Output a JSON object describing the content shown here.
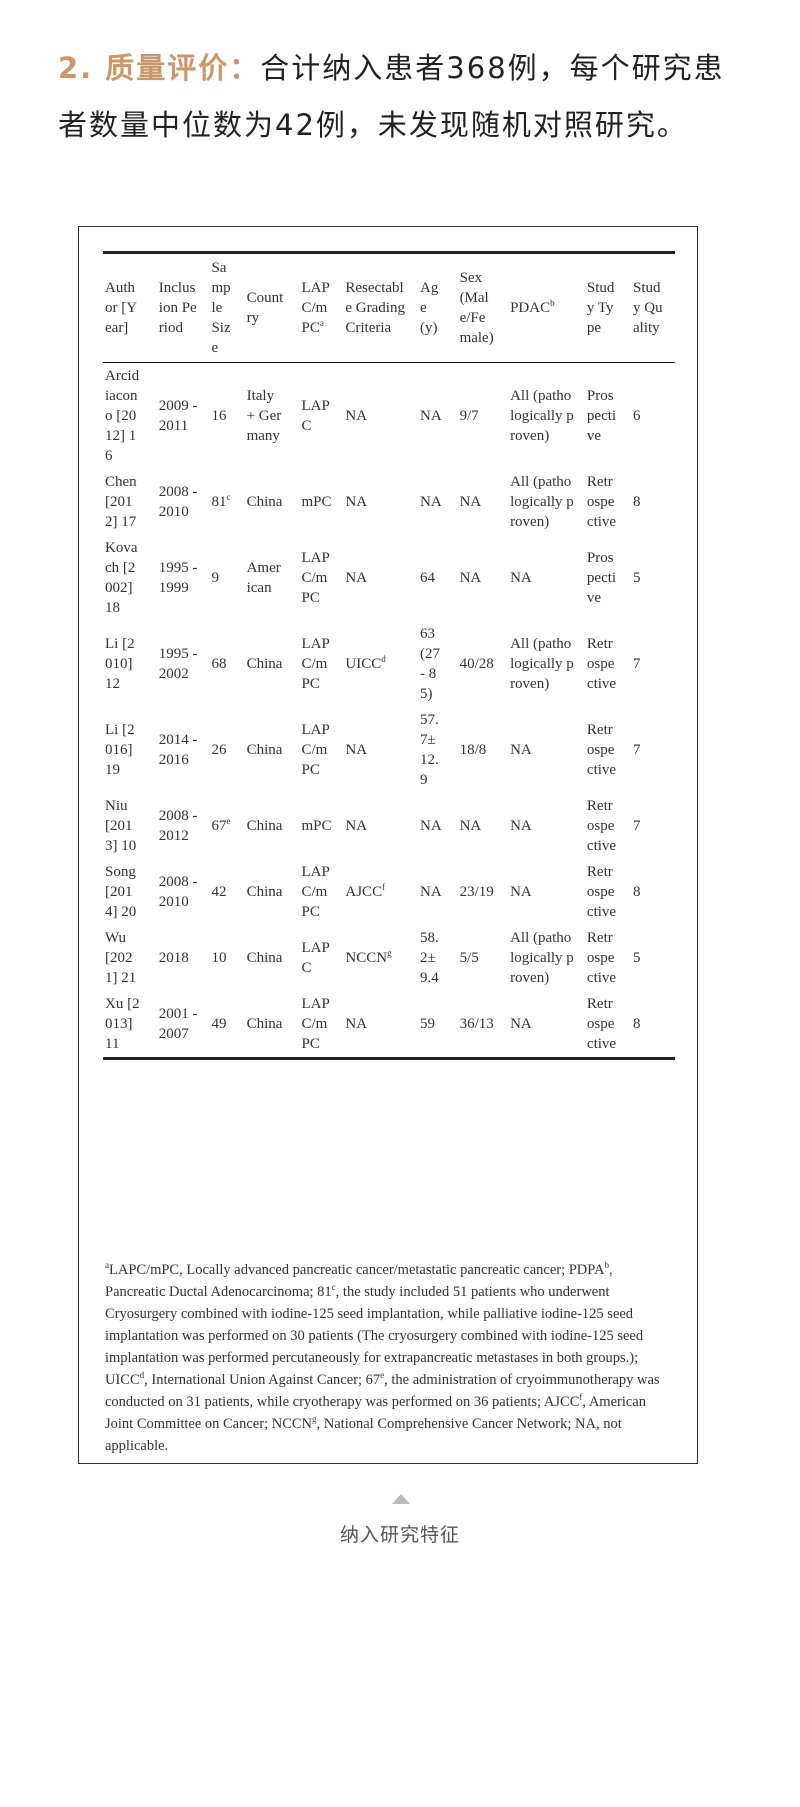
{
  "intro": {
    "heading": "2. 质量评价：",
    "text": "合计纳入患者368例，每个研究患者数量中位数为42例，未发现随机对照研究。"
  },
  "table": {
    "columns": [
      {
        "label": "Author [Year]",
        "sup": "",
        "w": 36
      },
      {
        "label": "Inclusion Period",
        "sup": "",
        "w": 40
      },
      {
        "label": "Sample Size",
        "sup": "",
        "w": 22
      },
      {
        "label": "Country",
        "sup": "",
        "w": 38
      },
      {
        "label": "LAPC/mPC",
        "sup": "a",
        "w": 30
      },
      {
        "label": "Resectable Grading Criteria",
        "sup": "",
        "w": 62
      },
      {
        "label": "Age (y)",
        "sup": "",
        "w": 24
      },
      {
        "label": "Sex (Male/Female)",
        "sup": "",
        "w": 36
      },
      {
        "label": "PDAC",
        "sup": "b",
        "w": 64
      },
      {
        "label": "Study Type",
        "sup": "",
        "w": 30
      },
      {
        "label": "Study Quality",
        "sup": "",
        "w": 30
      }
    ],
    "rows": [
      [
        [
          "Arcidiacono [2012] 16",
          ""
        ],
        [
          "2009 - 2011",
          ""
        ],
        [
          "16",
          ""
        ],
        [
          "Italy + Germany",
          ""
        ],
        [
          "LAPC",
          ""
        ],
        [
          "NA",
          ""
        ],
        [
          "NA",
          ""
        ],
        [
          "9/7",
          ""
        ],
        [
          "All (pathologically proven)",
          ""
        ],
        [
          "Prospective",
          ""
        ],
        [
          "6",
          ""
        ]
      ],
      [
        [
          "Chen [2012] 17",
          ""
        ],
        [
          "2008 - 2010",
          ""
        ],
        [
          "81",
          "c"
        ],
        [
          "China",
          ""
        ],
        [
          "mPC",
          ""
        ],
        [
          "NA",
          ""
        ],
        [
          "NA",
          ""
        ],
        [
          "NA",
          ""
        ],
        [
          "All (pathologically proven)",
          ""
        ],
        [
          "Retrospective",
          ""
        ],
        [
          "8",
          ""
        ]
      ],
      [
        [
          "Kovach [2002] 18",
          ""
        ],
        [
          "1995 - 1999",
          ""
        ],
        [
          "9",
          ""
        ],
        [
          "American",
          ""
        ],
        [
          "LAPC/mPC",
          ""
        ],
        [
          "NA",
          ""
        ],
        [
          "64",
          ""
        ],
        [
          "NA",
          ""
        ],
        [
          "NA",
          ""
        ],
        [
          "Prospective",
          ""
        ],
        [
          "5",
          ""
        ]
      ],
      [
        [
          "Li [2010] 12",
          ""
        ],
        [
          "1995 - 2002",
          ""
        ],
        [
          "68",
          ""
        ],
        [
          "China",
          ""
        ],
        [
          "LAPC/mPC",
          ""
        ],
        [
          "UICC",
          "d"
        ],
        [
          "63 (27 - 85)",
          ""
        ],
        [
          "40/28",
          ""
        ],
        [
          "All (pathologically proven)",
          ""
        ],
        [
          "Retrospective",
          ""
        ],
        [
          "7",
          ""
        ]
      ],
      [
        [
          "Li [2016] 19",
          ""
        ],
        [
          "2014 - 2016",
          ""
        ],
        [
          "26",
          ""
        ],
        [
          "China",
          ""
        ],
        [
          "LAPC/mPC",
          ""
        ],
        [
          "NA",
          ""
        ],
        [
          "57.7± 12.9",
          ""
        ],
        [
          "18/8",
          ""
        ],
        [
          "NA",
          ""
        ],
        [
          "Retrospective",
          ""
        ],
        [
          "7",
          ""
        ]
      ],
      [
        [
          "Niu [2013] 10",
          ""
        ],
        [
          "2008 - 2012",
          ""
        ],
        [
          "67",
          "e"
        ],
        [
          "China",
          ""
        ],
        [
          "mPC",
          ""
        ],
        [
          "NA",
          ""
        ],
        [
          "NA",
          ""
        ],
        [
          "NA",
          ""
        ],
        [
          "NA",
          ""
        ],
        [
          "Retrospective",
          ""
        ],
        [
          "7",
          ""
        ]
      ],
      [
        [
          "Song [2014] 20",
          ""
        ],
        [
          "2008 - 2010",
          ""
        ],
        [
          "42",
          ""
        ],
        [
          "China",
          ""
        ],
        [
          "LAPC/mPC",
          ""
        ],
        [
          "AJCC",
          "f"
        ],
        [
          "NA",
          ""
        ],
        [
          "23/19",
          ""
        ],
        [
          "NA",
          ""
        ],
        [
          "Retrospective",
          ""
        ],
        [
          "8",
          ""
        ]
      ],
      [
        [
          "Wu [2021] 21",
          ""
        ],
        [
          "2018",
          ""
        ],
        [
          "10",
          ""
        ],
        [
          "China",
          ""
        ],
        [
          "LAPC",
          ""
        ],
        [
          "NCCN",
          "g"
        ],
        [
          "58.2± 9.4",
          ""
        ],
        [
          "5/5",
          ""
        ],
        [
          "All (pathologically proven)",
          ""
        ],
        [
          "Retrospective",
          ""
        ],
        [
          "5",
          ""
        ]
      ],
      [
        [
          "Xu [2013] 11",
          ""
        ],
        [
          "2001 - 2007",
          ""
        ],
        [
          "49",
          ""
        ],
        [
          "China",
          ""
        ],
        [
          "LAPC/mPC",
          ""
        ],
        [
          "NA",
          ""
        ],
        [
          "59",
          ""
        ],
        [
          "36/13",
          ""
        ],
        [
          "NA",
          ""
        ],
        [
          "Retrospective",
          ""
        ],
        [
          "8",
          ""
        ]
      ]
    ]
  },
  "footnote": [
    [
      "a",
      ""
    ],
    [
      "LAPC/mPC, Locally advanced pancreatic cancer/metastatic pancreatic cancer; PDPA",
      ""
    ],
    [
      "b",
      ""
    ],
    [
      ", Pancreatic Ductal Adenocarcinoma;   81",
      ""
    ],
    [
      "c",
      ""
    ],
    [
      ", the study included 51 patients who underwent Cryosurgery combined with iodine-125 seed implantation, while palliative iodine-125 seed implantation was performed on 30 patients (The cryosurgery combined with iodine-125 seed implantation was performed percutaneously for extrapancreatic metastases in both groups.); UICC",
      ""
    ],
    [
      "d",
      ""
    ],
    [
      ", International Union Against Cancer; 67",
      ""
    ],
    [
      "e",
      ""
    ],
    [
      ", the administration of cryoimmunotherapy was conducted on 31 patients, while cryotherapy was performed on 36 patients; AJCC",
      ""
    ],
    [
      "f",
      ""
    ],
    [
      ", American Joint Committee on Cancer; NCCN",
      ""
    ],
    [
      "g",
      ""
    ],
    [
      ", National Comprehensive Cancer Network; NA, not applicable.",
      ""
    ]
  ],
  "caption": "纳入研究特征",
  "colors": {
    "accent": "#c9976a",
    "text": "#222222",
    "caption": "#555555"
  }
}
